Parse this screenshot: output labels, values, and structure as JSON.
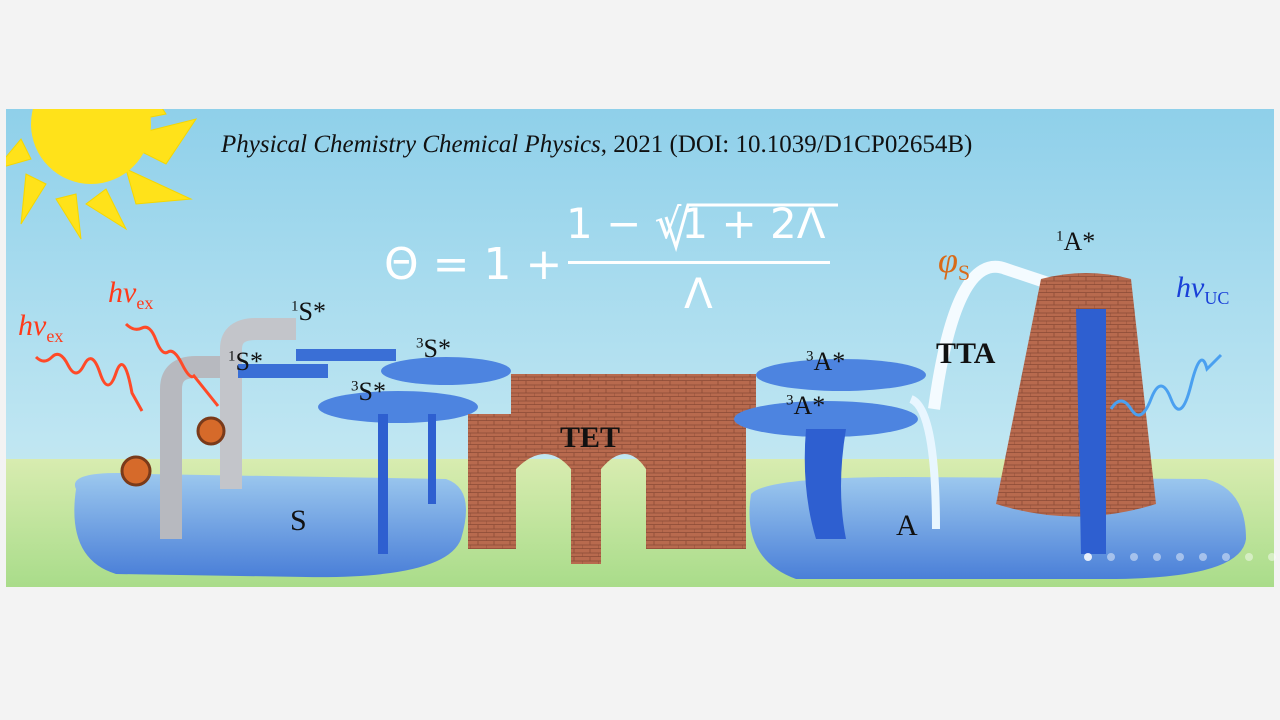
{
  "citation": {
    "journal": "Physical Chemistry Chemical Physics",
    "rest": ", 2021 (DOI: 10.1039/D1CP02654B)"
  },
  "equation": {
    "lhs": "Θ = 1 +",
    "numerator": "1 − √1 + 2Λ",
    "denominator": "Λ"
  },
  "labels": {
    "hv_ex_1": "hν",
    "hv_ex_sub": "ex",
    "s1_top": "S*",
    "s1_sup": "1",
    "s3_top": "S*",
    "s3_sup": "3",
    "a3": "A*",
    "a3_sup": "3",
    "a1": "A*",
    "a1_sup": "1",
    "phi": "φ",
    "phi_sub": "S",
    "hv_uc": "hν",
    "hv_uc_sub": "UC",
    "tet": "TET",
    "tta": "TTA",
    "s": "S",
    "a": "A"
  },
  "carousel": {
    "count": 9,
    "active_index": 0
  },
  "colors": {
    "sky": "#8fd3ea",
    "grass": "#bfe3a0",
    "brick": "#b86a4e",
    "platform": "#3b6fd6",
    "sun": "#ffe21a",
    "background": "#f3f3f3"
  }
}
